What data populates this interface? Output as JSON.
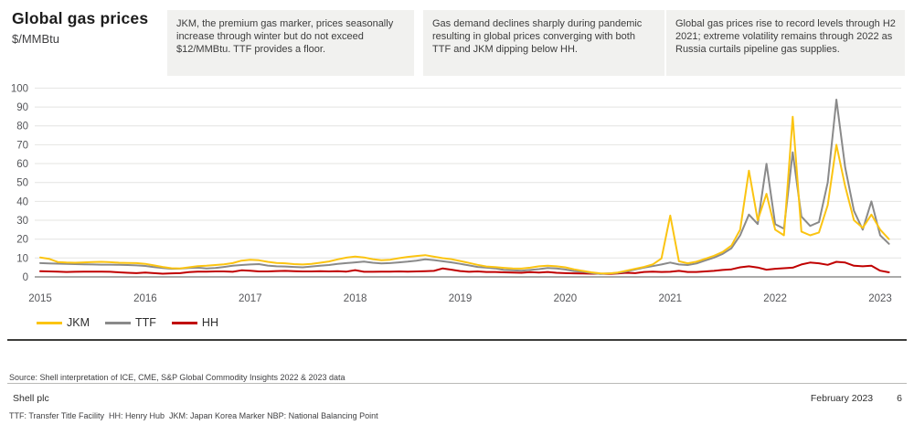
{
  "header": {
    "title": "Global gas prices",
    "subtitle": "$/MMBtu"
  },
  "annotations": [
    {
      "text": "JKM, the premium gas marker, prices seasonally increase through winter but do not exceed $12/MMBtu. TTF provides a floor."
    },
    {
      "text": "Gas demand declines sharply during pandemic resulting in global prices converging with both TTF and JKM dipping below HH."
    },
    {
      "text": "Global gas prices rise to record levels through H2 2021; extreme volatility remains through 2022 as Russia curtails pipeline gas supplies."
    }
  ],
  "chart_data": {
    "type": "line",
    "title": "Global gas prices",
    "ylabel": "$/MMBtu",
    "xlabel": "",
    "x_start": "2015-01",
    "x_end": "2023-02",
    "frequency": "monthly",
    "x_tick_years": [
      "2015",
      "2016",
      "2017",
      "2018",
      "2019",
      "2020",
      "2021",
      "2022",
      "2023"
    ],
    "y_ticks": [
      0,
      10,
      20,
      30,
      40,
      50,
      60,
      70,
      80,
      90,
      100
    ],
    "ylim": [
      0,
      100
    ],
    "grid": "horizontal",
    "legend_position": "bottom-left",
    "series": [
      {
        "name": "JKM",
        "color": "#FBC412",
        "values": [
          10.3,
          9.6,
          7.9,
          7.6,
          7.5,
          7.7,
          7.9,
          8.0,
          7.8,
          7.5,
          7.4,
          7.3,
          6.9,
          6.1,
          5.3,
          4.6,
          4.5,
          5.1,
          5.7,
          5.9,
          6.3,
          6.7,
          7.3,
          8.6,
          9.1,
          8.8,
          8.0,
          7.4,
          7.2,
          6.8,
          6.6,
          6.9,
          7.5,
          8.2,
          9.3,
          10.2,
          10.8,
          10.3,
          9.4,
          8.8,
          9.1,
          9.9,
          10.6,
          11.1,
          11.5,
          10.7,
          9.9,
          9.4,
          8.4,
          7.4,
          6.4,
          5.5,
          5.2,
          4.8,
          4.5,
          4.4,
          4.9,
          5.6,
          5.9,
          5.6,
          5.1,
          4.0,
          3.2,
          2.4,
          1.9,
          1.8,
          2.3,
          3.3,
          4.3,
          5.3,
          6.6,
          9.8,
          32.5,
          8.3,
          7.2,
          8.1,
          9.6,
          11.2,
          13.2,
          16.6,
          25.0,
          56.3,
          30.0,
          44.0,
          25.0,
          22.0,
          84.8,
          24.0,
          22.0,
          23.5,
          38.0,
          70.0,
          48.0,
          30.0,
          26.0,
          33.0,
          25.0,
          20.0
        ]
      },
      {
        "name": "TTF",
        "color": "#8A8A8A",
        "values": [
          7.3,
          7.1,
          7.0,
          6.9,
          6.8,
          6.7,
          6.6,
          6.5,
          6.5,
          6.4,
          6.3,
          6.1,
          5.8,
          5.2,
          4.7,
          4.3,
          4.4,
          4.7,
          4.9,
          4.5,
          4.7,
          5.3,
          5.9,
          6.3,
          6.6,
          6.8,
          6.0,
          5.6,
          5.5,
          5.3,
          5.1,
          5.5,
          5.9,
          6.3,
          6.9,
          7.3,
          7.7,
          8.1,
          7.5,
          7.1,
          7.3,
          7.7,
          8.1,
          8.6,
          9.3,
          8.9,
          8.3,
          7.7,
          6.9,
          6.1,
          5.3,
          4.9,
          4.5,
          3.7,
          3.5,
          3.3,
          3.7,
          4.1,
          4.7,
          4.5,
          3.9,
          3.1,
          2.7,
          2.1,
          1.6,
          1.9,
          2.1,
          2.9,
          3.9,
          4.9,
          5.7,
          6.6,
          7.6,
          6.6,
          6.3,
          7.1,
          8.7,
          10.2,
          12.2,
          15.2,
          22.0,
          33.0,
          28.0,
          59.9,
          28.0,
          25.5,
          66.0,
          32.0,
          27.0,
          29.0,
          50.0,
          93.9,
          58.0,
          35.0,
          25.0,
          40.0,
          22.0,
          17.5
        ]
      },
      {
        "name": "HH",
        "color": "#C00000",
        "values": [
          3.0,
          2.9,
          2.8,
          2.6,
          2.7,
          2.8,
          2.8,
          2.8,
          2.7,
          2.4,
          2.2,
          2.0,
          2.3,
          2.0,
          1.7,
          1.9,
          2.0,
          2.5,
          2.8,
          2.8,
          2.9,
          2.9,
          2.7,
          3.5,
          3.3,
          2.9,
          2.9,
          3.1,
          3.2,
          3.0,
          2.9,
          2.9,
          3.0,
          2.9,
          3.0,
          2.8,
          3.6,
          2.7,
          2.7,
          2.8,
          2.8,
          2.9,
          2.8,
          2.9,
          3.0,
          3.2,
          4.5,
          3.8,
          3.1,
          2.7,
          2.9,
          2.6,
          2.6,
          2.4,
          2.3,
          2.2,
          2.5,
          2.3,
          2.6,
          2.2,
          2.0,
          1.9,
          1.8,
          1.7,
          1.7,
          1.6,
          1.8,
          2.2,
          2.0,
          2.6,
          2.8,
          2.6,
          2.7,
          3.2,
          2.6,
          2.6,
          2.9,
          3.2,
          3.7,
          4.0,
          5.1,
          5.6,
          5.0,
          3.8,
          4.3,
          4.6,
          4.9,
          6.6,
          7.6,
          7.2,
          6.4,
          8.0,
          7.6,
          5.9,
          5.6,
          5.9,
          3.3,
          2.4
        ]
      }
    ]
  },
  "footnotes": {
    "source": "Source: Shell interpretation of ICE, CME, S&P Global Commodity Insights 2022 & 2023 data",
    "definitions": "TTF: Transfer Title Facility  HH: Henry Hub  JKM: Japan Korea Marker NBP: National Balancing Point"
  },
  "footer": {
    "company": "Shell plc",
    "date": "February 2023",
    "page": "6"
  }
}
